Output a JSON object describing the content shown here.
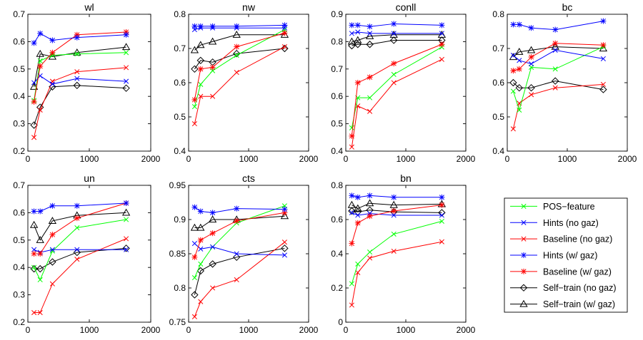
{
  "legend": {
    "placement": "right, below bc panel",
    "entries": [
      {
        "label": "POS−feature",
        "color": "#00ff00",
        "marker": "x"
      },
      {
        "label": "Hints (no gaz)",
        "color": "#0000ff",
        "marker": "x"
      },
      {
        "label": "Baseline (no gaz)",
        "color": "#ff0000",
        "marker": "x"
      },
      {
        "label": "Hints (w/ gaz)",
        "color": "#0000ff",
        "marker": "star"
      },
      {
        "label": "Baseline (w/ gaz)",
        "color": "#ff0000",
        "marker": "star"
      },
      {
        "label": "Self−train (no gaz)",
        "color": "#000000",
        "marker": "diamond"
      },
      {
        "label": "Self−train (w/ gaz)",
        "color": "#000000",
        "marker": "triangle"
      }
    ]
  },
  "chart_data": [
    {
      "type": "line",
      "title": "wl",
      "xlim": [
        0,
        2000
      ],
      "ylim": [
        0.2,
        0.7
      ],
      "xticks": [
        0,
        1000,
        2000
      ],
      "yticks": [
        0.2,
        0.3,
        0.4,
        0.5,
        0.6,
        0.7
      ],
      "yticklabels": [
        "0.2",
        "0.3",
        "0.4",
        "0.5",
        "0.6",
        "0.7"
      ],
      "grid": false,
      "x": [
        100,
        200,
        400,
        800,
        1600
      ],
      "series": [
        {
          "name": "POS−feature",
          "values": [
            0.385,
            0.53,
            0.55,
            0.555,
            0.56
          ]
        },
        {
          "name": "Hints (no gaz)",
          "values": [
            0.45,
            0.475,
            0.445,
            0.465,
            0.455
          ]
        },
        {
          "name": "Baseline (no gaz)",
          "values": [
            0.25,
            0.35,
            0.455,
            0.49,
            0.505
          ]
        },
        {
          "name": "Hints (w/ gaz)",
          "values": [
            0.595,
            0.63,
            0.605,
            0.615,
            0.625
          ]
        },
        {
          "name": "Baseline (w/ gaz)",
          "values": [
            0.38,
            0.51,
            0.56,
            0.625,
            0.635
          ]
        },
        {
          "name": "Self−train (no gaz)",
          "values": [
            0.295,
            0.36,
            0.435,
            0.44,
            0.43
          ]
        },
        {
          "name": "Self−train (w/ gaz)",
          "values": [
            0.435,
            0.555,
            0.545,
            0.56,
            0.58
          ]
        }
      ]
    },
    {
      "type": "line",
      "title": "nw",
      "xlim": [
        0,
        2000
      ],
      "ylim": [
        0.4,
        0.8
      ],
      "xticks": [
        0,
        1000,
        2000
      ],
      "yticks": [
        0.4,
        0.5,
        0.6,
        0.7,
        0.8
      ],
      "yticklabels": [
        "0.4",
        "0.5",
        "0.6",
        "0.7",
        "0.8"
      ],
      "grid": false,
      "x": [
        100,
        200,
        400,
        800,
        1600
      ],
      "series": [
        {
          "name": "POS−feature",
          "values": [
            0.53,
            0.595,
            0.635,
            0.68,
            0.755
          ]
        },
        {
          "name": "Hints (no gaz)",
          "values": [
            0.755,
            0.76,
            0.76,
            0.76,
            0.76
          ]
        },
        {
          "name": "Baseline (no gaz)",
          "values": [
            0.48,
            0.56,
            0.56,
            0.63,
            0.705
          ]
        },
        {
          "name": "Hints (w/ gaz)",
          "values": [
            0.765,
            0.765,
            0.765,
            0.765,
            0.768
          ]
        },
        {
          "name": "Baseline (w/ gaz)",
          "values": [
            0.55,
            0.64,
            0.645,
            0.705,
            0.745
          ]
        },
        {
          "name": "Self−train (no gaz)",
          "values": [
            0.64,
            0.665,
            0.66,
            0.685,
            0.7
          ]
        },
        {
          "name": "Self−train (w/ gaz)",
          "values": [
            0.695,
            0.71,
            0.72,
            0.74,
            0.74
          ]
        }
      ]
    },
    {
      "type": "line",
      "title": "conll",
      "xlim": [
        0,
        2000
      ],
      "ylim": [
        0.4,
        0.9
      ],
      "xticks": [
        0,
        1000,
        2000
      ],
      "yticks": [
        0.4,
        0.5,
        0.6,
        0.7,
        0.8,
        0.9
      ],
      "yticklabels": [
        "0.4",
        "0.5",
        "0.6",
        "0.7",
        "0.8",
        "0.9"
      ],
      "grid": false,
      "x": [
        100,
        200,
        400,
        800,
        1600
      ],
      "series": [
        {
          "name": "POS−feature",
          "values": [
            0.485,
            0.595,
            0.595,
            0.68,
            0.78
          ]
        },
        {
          "name": "Hints (no gaz)",
          "values": [
            0.83,
            0.835,
            0.83,
            0.83,
            0.83
          ]
        },
        {
          "name": "Baseline (no gaz)",
          "values": [
            0.415,
            0.565,
            0.545,
            0.65,
            0.735
          ]
        },
        {
          "name": "Hints (w/ gaz)",
          "values": [
            0.86,
            0.86,
            0.855,
            0.865,
            0.86
          ]
        },
        {
          "name": "Baseline (w/ gaz)",
          "values": [
            0.455,
            0.65,
            0.67,
            0.72,
            0.79
          ]
        },
        {
          "name": "Self−train (no gaz)",
          "values": [
            0.785,
            0.79,
            0.79,
            0.805,
            0.805
          ]
        },
        {
          "name": "Self−train (w/ gaz)",
          "values": [
            0.8,
            0.805,
            0.82,
            0.825,
            0.825
          ]
        }
      ]
    },
    {
      "type": "line",
      "title": "bc",
      "xlim": [
        0,
        2000
      ],
      "ylim": [
        0.4,
        0.8
      ],
      "xticks": [
        0,
        1000,
        2000
      ],
      "yticks": [
        0.4,
        0.5,
        0.6,
        0.7,
        0.8
      ],
      "yticklabels": [
        "0.4",
        "0.5",
        "0.6",
        "0.7",
        "0.8"
      ],
      "grid": false,
      "x": [
        100,
        200,
        400,
        800,
        1600
      ],
      "series": [
        {
          "name": "POS−feature",
          "values": [
            0.575,
            0.52,
            0.645,
            0.64,
            0.705
          ]
        },
        {
          "name": "Hints (no gaz)",
          "values": [
            0.68,
            0.665,
            0.655,
            0.695,
            0.67
          ]
        },
        {
          "name": "Baseline (no gaz)",
          "values": [
            0.465,
            0.54,
            0.565,
            0.585,
            0.595
          ]
        },
        {
          "name": "Hints (w/ gaz)",
          "values": [
            0.77,
            0.77,
            0.76,
            0.755,
            0.78
          ]
        },
        {
          "name": "Baseline (w/ gaz)",
          "values": [
            0.635,
            0.64,
            0.675,
            0.715,
            0.71
          ]
        },
        {
          "name": "Self−train (no gaz)",
          "values": [
            0.6,
            0.585,
            0.585,
            0.605,
            0.58
          ]
        },
        {
          "name": "Self−train (w/ gaz)",
          "values": [
            0.675,
            0.69,
            0.695,
            0.705,
            0.7
          ]
        }
      ]
    },
    {
      "type": "line",
      "title": "un",
      "xlim": [
        0,
        2000
      ],
      "ylim": [
        0.2,
        0.7
      ],
      "xticks": [
        0,
        1000,
        2000
      ],
      "yticks": [
        0.2,
        0.3,
        0.4,
        0.5,
        0.6,
        0.7
      ],
      "yticklabels": [
        "0.2",
        "0.3",
        "0.4",
        "0.5",
        "0.6",
        "0.7"
      ],
      "grid": false,
      "x": [
        100,
        200,
        400,
        800,
        1600
      ],
      "series": [
        {
          "name": "POS−feature",
          "values": [
            0.4,
            0.355,
            0.46,
            0.545,
            0.575
          ]
        },
        {
          "name": "Hints (no gaz)",
          "values": [
            0.465,
            0.455,
            0.465,
            0.465,
            0.465
          ]
        },
        {
          "name": "Baseline (no gaz)",
          "values": [
            0.235,
            0.235,
            0.34,
            0.43,
            0.505
          ]
        },
        {
          "name": "Hints (w/ gaz)",
          "values": [
            0.605,
            0.605,
            0.625,
            0.625,
            0.635
          ]
        },
        {
          "name": "Baseline (w/ gaz)",
          "values": [
            0.45,
            0.45,
            0.52,
            0.58,
            0.635
          ]
        },
        {
          "name": "Self−train (no gaz)",
          "values": [
            0.395,
            0.395,
            0.42,
            0.455,
            0.47
          ]
        },
        {
          "name": "Self−train (w/ gaz)",
          "values": [
            0.555,
            0.5,
            0.57,
            0.59,
            0.6
          ]
        }
      ]
    },
    {
      "type": "line",
      "title": "cts",
      "xlim": [
        0,
        2000
      ],
      "ylim": [
        0.75,
        0.95
      ],
      "xticks": [
        0,
        1000,
        2000
      ],
      "yticks": [
        0.75,
        0.8,
        0.85,
        0.9,
        0.95
      ],
      "yticklabels": [
        "0.75",
        "0.8",
        "0.85",
        "0.9",
        "0.95"
      ],
      "grid": false,
      "x": [
        100,
        200,
        400,
        800,
        1600
      ],
      "series": [
        {
          "name": "POS−feature",
          "values": [
            0.815,
            0.835,
            0.86,
            0.895,
            0.92
          ]
        },
        {
          "name": "Hints (no gaz)",
          "values": [
            0.865,
            0.857,
            0.86,
            0.85,
            0.848
          ]
        },
        {
          "name": "Baseline (no gaz)",
          "values": [
            0.758,
            0.78,
            0.8,
            0.812,
            0.867
          ]
        },
        {
          "name": "Hints (w/ gaz)",
          "values": [
            0.918,
            0.912,
            0.91,
            0.916,
            0.915
          ]
        },
        {
          "name": "Baseline (w/ gaz)",
          "values": [
            0.845,
            0.87,
            0.88,
            0.898,
            0.91
          ]
        },
        {
          "name": "Self−train (no gaz)",
          "values": [
            0.79,
            0.825,
            0.835,
            0.845,
            0.858
          ]
        },
        {
          "name": "Self−train (w/ gaz)",
          "values": [
            0.888,
            0.888,
            0.9,
            0.9,
            0.905
          ]
        }
      ]
    },
    {
      "type": "line",
      "title": "bn",
      "xlim": [
        0,
        2000
      ],
      "ylim": [
        0,
        0.8
      ],
      "xticks": [
        0,
        1000,
        2000
      ],
      "yticks": [
        0,
        0.2,
        0.4,
        0.6,
        0.8
      ],
      "yticklabels": [
        "0",
        "0.2",
        "0.4",
        "0.6",
        "0.8"
      ],
      "grid": false,
      "x": [
        100,
        200,
        400,
        800,
        1600
      ],
      "series": [
        {
          "name": "POS−feature",
          "values": [
            0.225,
            0.34,
            0.41,
            0.515,
            0.59
          ]
        },
        {
          "name": "Hints (no gaz)",
          "values": [
            0.64,
            0.625,
            0.635,
            0.625,
            0.625
          ]
        },
        {
          "name": "Baseline (no gaz)",
          "values": [
            0.1,
            0.29,
            0.375,
            0.415,
            0.47
          ]
        },
        {
          "name": "Hints (w/ gaz)",
          "values": [
            0.74,
            0.73,
            0.74,
            0.73,
            0.73
          ]
        },
        {
          "name": "Baseline (w/ gaz)",
          "values": [
            0.46,
            0.58,
            0.62,
            0.65,
            0.685
          ]
        },
        {
          "name": "Self−train (no gaz)",
          "values": [
            0.65,
            0.645,
            0.655,
            0.645,
            0.64
          ]
        },
        {
          "name": "Self−train (w/ gaz)",
          "values": [
            0.685,
            0.665,
            0.695,
            0.685,
            0.69
          ]
        }
      ]
    }
  ]
}
